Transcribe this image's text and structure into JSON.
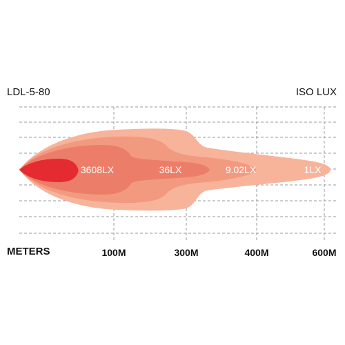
{
  "chart_data": {
    "type": "area",
    "model": "LDL-5-80",
    "unit": "ISO LUX",
    "xlabel": "METERS",
    "ticks": [
      "100M",
      "300M",
      "400M",
      "600M"
    ],
    "zones": [
      {
        "label": "1LX",
        "lux": 1,
        "color": "#f7b49a"
      },
      {
        "label": "9.02LX",
        "lux": 9.02,
        "color": "#f29a80"
      },
      {
        "label": "36LX",
        "lux": 36,
        "color": "#ec7e69"
      },
      {
        "label": "3608LX",
        "lux": 3608,
        "color": "#e52b32"
      }
    ],
    "grid": true
  }
}
